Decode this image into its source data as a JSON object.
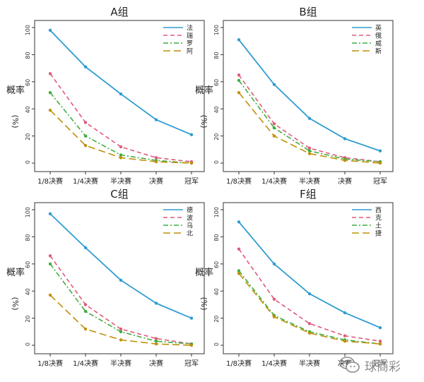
{
  "chart_data": [
    {
      "type": "line",
      "title": "A组",
      "ylabel_main": "概率",
      "ylabel_unit": "(%)",
      "categories": [
        "1/8决赛",
        "1/4决赛",
        "半决赛",
        "决赛",
        "冠军"
      ],
      "yticks": [
        0,
        20,
        40,
        60,
        80,
        100
      ],
      "ylim": [
        0,
        100
      ],
      "legend_position": "top-right",
      "series": [
        {
          "name": "法",
          "values": [
            98,
            71,
            51,
            32,
            21
          ]
        },
        {
          "name": "瑞",
          "values": [
            66,
            30,
            12,
            4,
            1
          ]
        },
        {
          "name": "罗",
          "values": [
            52,
            20,
            6,
            2,
            0
          ]
        },
        {
          "name": "阿",
          "values": [
            39,
            13,
            4,
            1,
            0
          ]
        }
      ]
    },
    {
      "type": "line",
      "title": "B组",
      "ylabel_main": "概率",
      "ylabel_unit": "(%)",
      "categories": [
        "1/8决赛",
        "1/4决赛",
        "半决赛",
        "决赛",
        "冠军"
      ],
      "yticks": [
        0,
        20,
        40,
        60,
        80,
        100
      ],
      "ylim": [
        0,
        100
      ],
      "legend_position": "top-right",
      "series": [
        {
          "name": "英",
          "values": [
            91,
            58,
            33,
            18,
            9
          ]
        },
        {
          "name": "俄",
          "values": [
            65,
            29,
            11,
            4,
            1
          ]
        },
        {
          "name": "威",
          "values": [
            61,
            26,
            9,
            3,
            1
          ]
        },
        {
          "name": "斯",
          "values": [
            52,
            20,
            7,
            2,
            0
          ]
        }
      ]
    },
    {
      "type": "line",
      "title": "C组",
      "ylabel_main": "概率",
      "ylabel_unit": "(%)",
      "categories": [
        "1/8决赛",
        "1/4决赛",
        "半决赛",
        "决赛",
        "冠军"
      ],
      "yticks": [
        0,
        20,
        40,
        60,
        80,
        100
      ],
      "ylim": [
        0,
        100
      ],
      "legend_position": "top-right",
      "series": [
        {
          "name": "德",
          "values": [
            97,
            72,
            48,
            31,
            20
          ]
        },
        {
          "name": "波",
          "values": [
            66,
            30,
            12,
            5,
            1
          ]
        },
        {
          "name": "乌",
          "values": [
            60,
            25,
            10,
            3,
            1
          ]
        },
        {
          "name": "北",
          "values": [
            37,
            12,
            4,
            1,
            0
          ]
        }
      ]
    },
    {
      "type": "line",
      "title": "F组",
      "ylabel_main": "概率",
      "ylabel_unit": "(%)",
      "categories": [
        "1/8决赛",
        "1/4决赛",
        "半决赛",
        "决赛",
        "冠军"
      ],
      "yticks": [
        0,
        20,
        40,
        60,
        80,
        100
      ],
      "ylim": [
        0,
        100
      ],
      "legend_position": "top-right",
      "series": [
        {
          "name": "西",
          "values": [
            91,
            60,
            38,
            24,
            13
          ]
        },
        {
          "name": "克",
          "values": [
            71,
            34,
            16,
            7,
            3
          ]
        },
        {
          "name": "土",
          "values": [
            55,
            22,
            10,
            4,
            1
          ]
        },
        {
          "name": "捷",
          "values": [
            53,
            21,
            9,
            3,
            1
          ]
        }
      ]
    }
  ],
  "series_styles": [
    {
      "color": "#2e9cd1",
      "dash": "solid"
    },
    {
      "color": "#e05a7a",
      "dash": "dashed"
    },
    {
      "color": "#3fae3f",
      "dash": "dashdot"
    },
    {
      "color": "#c0900a",
      "dash": "longdash"
    }
  ],
  "watermark": {
    "text": "球商彩",
    "icon": "wechat-icon"
  }
}
